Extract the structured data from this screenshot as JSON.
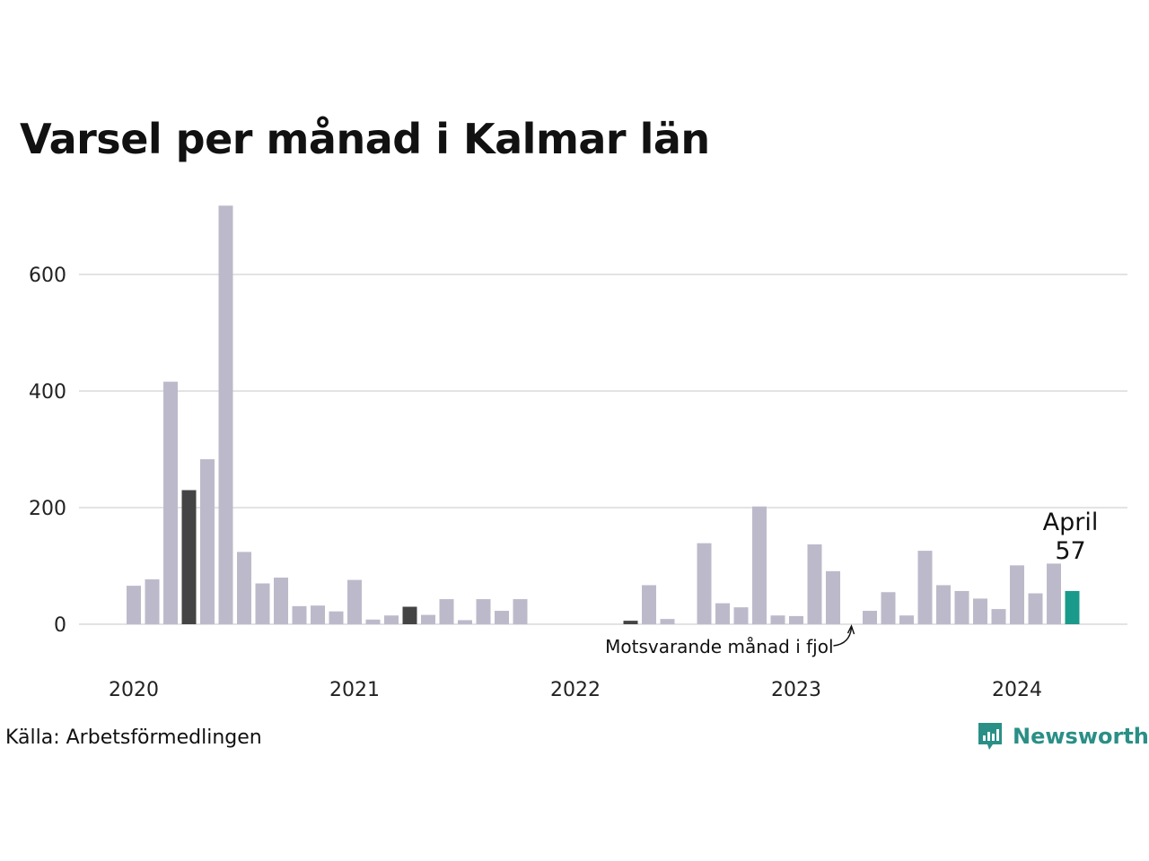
{
  "chart_data": {
    "type": "bar",
    "title": "Varsel per månad i Kalmar län",
    "xlabel": "",
    "ylabel": "",
    "ylim": [
      0,
      720
    ],
    "yticks": [
      0,
      200,
      400,
      600
    ],
    "grid": true,
    "year_ticks": [
      "2020",
      "2021",
      "2022",
      "2023",
      "2024"
    ],
    "months": [
      "2020-01",
      "2020-02",
      "2020-03",
      "2020-04",
      "2020-05",
      "2020-06",
      "2020-07",
      "2020-08",
      "2020-09",
      "2020-10",
      "2020-11",
      "2020-12",
      "2021-01",
      "2021-02",
      "2021-03",
      "2021-04",
      "2021-05",
      "2021-06",
      "2021-07",
      "2021-08",
      "2021-09",
      "2021-10",
      "2021-11",
      "2021-12",
      "2022-01",
      "2022-02",
      "2022-03",
      "2022-04",
      "2022-05",
      "2022-06",
      "2022-07",
      "2022-08",
      "2022-09",
      "2022-10",
      "2022-11",
      "2022-12",
      "2023-01",
      "2023-02",
      "2023-03",
      "2023-04",
      "2023-05",
      "2023-06",
      "2023-07",
      "2023-08",
      "2023-09",
      "2023-10",
      "2023-11",
      "2023-12",
      "2024-01",
      "2024-02",
      "2024-03",
      "2024-04"
    ],
    "values": [
      66,
      77,
      416,
      230,
      283,
      718,
      124,
      70,
      80,
      31,
      32,
      22,
      76,
      8,
      15,
      30,
      16,
      43,
      7,
      43,
      23,
      43,
      0,
      0,
      0,
      0,
      0,
      6,
      67,
      9,
      0,
      139,
      36,
      29,
      202,
      15,
      14,
      137,
      91,
      0,
      23,
      55,
      15,
      126,
      67,
      57,
      44,
      26,
      101,
      53,
      104,
      57
    ],
    "highlight_index": 51,
    "compare_indices": [
      3,
      15,
      27,
      39
    ],
    "highlight_label": "April",
    "highlight_value": "57",
    "annotation": "Motsvarande månad i fjol",
    "colors": {
      "bar": "#bcbaca",
      "compare": "#444444",
      "highlight": "#1a9a8b",
      "grid": "#e3e3e6",
      "text": "#222222"
    }
  },
  "footer": {
    "source": "Källa: Arbetsförmedlingen",
    "brand": "Newsworthy",
    "brand_icon": "bar-chart-logo-icon"
  }
}
